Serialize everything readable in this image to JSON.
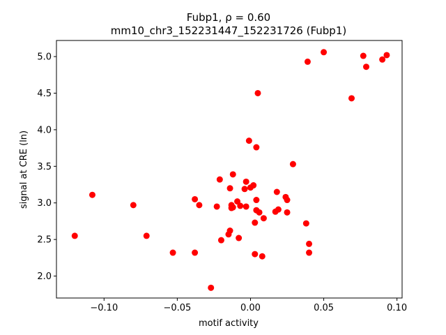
{
  "chart_data": {
    "type": "scatter",
    "title_line1": "Fubp1, ρ = 0.60",
    "title_line2": "mm10_chr3_152231447_152231726 (Fubp1)",
    "xlabel": "motif activity",
    "ylabel": "signal at CRE (ln)",
    "xlim": [
      -0.1325,
      0.1035
    ],
    "ylim": [
      1.7,
      5.22
    ],
    "xticks": [
      -0.1,
      -0.05,
      0.0,
      0.05,
      0.1
    ],
    "xtick_labels": [
      "−0.10",
      "−0.05",
      "0.00",
      "0.05",
      "0.10"
    ],
    "yticks": [
      2.0,
      2.5,
      3.0,
      3.5,
      4.0,
      4.5,
      5.0
    ],
    "ytick_labels": [
      "2.0",
      "2.5",
      "3.0",
      "3.5",
      "4.0",
      "4.5",
      "5.0"
    ],
    "grid": false,
    "marker_color": "#ff0000",
    "points": [
      {
        "x": -0.12,
        "y": 2.55
      },
      {
        "x": -0.108,
        "y": 3.11
      },
      {
        "x": -0.08,
        "y": 2.97
      },
      {
        "x": -0.071,
        "y": 2.55
      },
      {
        "x": -0.053,
        "y": 2.32
      },
      {
        "x": -0.038,
        "y": 3.05
      },
      {
        "x": -0.038,
        "y": 2.32
      },
      {
        "x": -0.035,
        "y": 2.97
      },
      {
        "x": -0.027,
        "y": 1.84
      },
      {
        "x": -0.023,
        "y": 2.95
      },
      {
        "x": -0.021,
        "y": 3.32
      },
      {
        "x": -0.02,
        "y": 2.49
      },
      {
        "x": -0.015,
        "y": 2.57
      },
      {
        "x": -0.014,
        "y": 2.62
      },
      {
        "x": -0.014,
        "y": 3.2
      },
      {
        "x": -0.013,
        "y": 2.93
      },
      {
        "x": -0.013,
        "y": 2.97
      },
      {
        "x": -0.012,
        "y": 3.39
      },
      {
        "x": -0.012,
        "y": 2.94
      },
      {
        "x": -0.009,
        "y": 3.02
      },
      {
        "x": -0.008,
        "y": 2.52
      },
      {
        "x": -0.007,
        "y": 2.96
      },
      {
        "x": -0.004,
        "y": 3.19
      },
      {
        "x": -0.003,
        "y": 2.95
      },
      {
        "x": -0.003,
        "y": 3.29
      },
      {
        "x": -0.001,
        "y": 3.85
      },
      {
        "x": 0.0,
        "y": 3.21
      },
      {
        "x": 0.002,
        "y": 3.24
      },
      {
        "x": 0.003,
        "y": 2.3
      },
      {
        "x": 0.003,
        "y": 2.73
      },
      {
        "x": 0.004,
        "y": 2.9
      },
      {
        "x": 0.004,
        "y": 3.04
      },
      {
        "x": 0.004,
        "y": 3.76
      },
      {
        "x": 0.005,
        "y": 4.5
      },
      {
        "x": 0.006,
        "y": 2.87
      },
      {
        "x": 0.008,
        "y": 2.27
      },
      {
        "x": 0.009,
        "y": 2.79
      },
      {
        "x": 0.017,
        "y": 2.88
      },
      {
        "x": 0.018,
        "y": 3.15
      },
      {
        "x": 0.019,
        "y": 2.91
      },
      {
        "x": 0.024,
        "y": 3.08
      },
      {
        "x": 0.025,
        "y": 2.87
      },
      {
        "x": 0.025,
        "y": 3.04
      },
      {
        "x": 0.029,
        "y": 3.53
      },
      {
        "x": 0.038,
        "y": 2.72
      },
      {
        "x": 0.039,
        "y": 4.93
      },
      {
        "x": 0.04,
        "y": 2.44
      },
      {
        "x": 0.04,
        "y": 2.32
      },
      {
        "x": 0.05,
        "y": 5.06
      },
      {
        "x": 0.069,
        "y": 4.43
      },
      {
        "x": 0.077,
        "y": 5.01
      },
      {
        "x": 0.079,
        "y": 4.86
      },
      {
        "x": 0.09,
        "y": 4.96
      },
      {
        "x": 0.093,
        "y": 5.02
      }
    ]
  }
}
